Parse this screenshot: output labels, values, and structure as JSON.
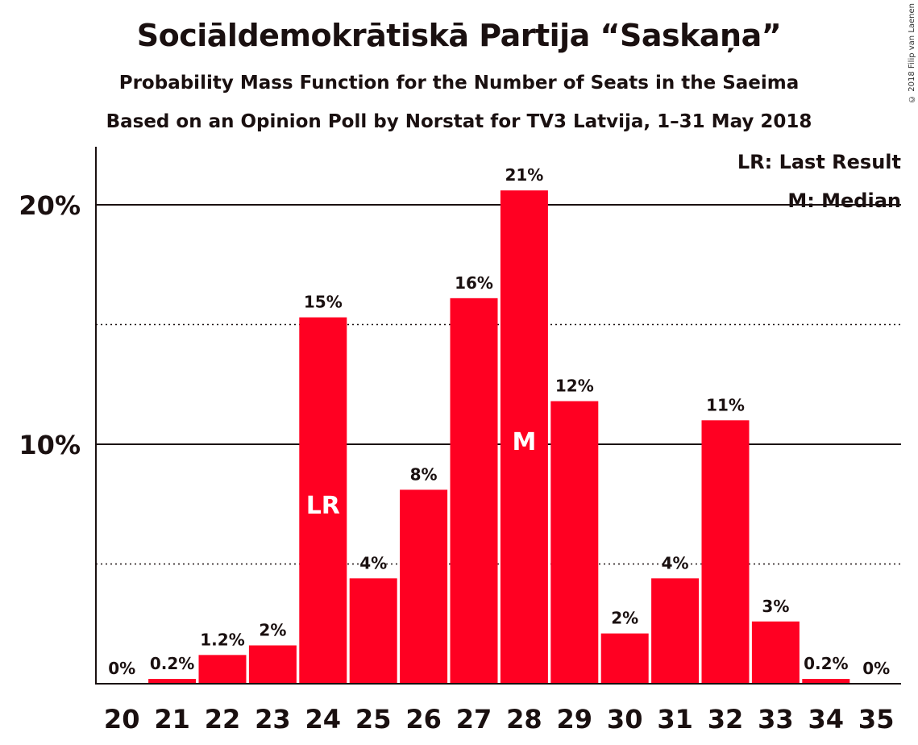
{
  "header": {
    "title": "Sociāldemokrātiskā Partija “Saskaņa”",
    "subtitle1": "Probability Mass Function for the Number of Seats in the Saeima",
    "subtitle2": "Based on an Opinion Poll by Norstat for TV3 Latvija, 1–31 May 2018",
    "copyright": "© 2018 Filip van Laenen"
  },
  "legend": {
    "last_result": "LR: Last Result",
    "median": "M: Median"
  },
  "colors": {
    "bar": "#ff0022",
    "axis": "#1a1010"
  },
  "chart_data": {
    "type": "bar",
    "title": "Sociāldemokrātiskā Partija “Saskaņa”",
    "xlabel": "",
    "ylabel": "",
    "categories": [
      "20",
      "21",
      "22",
      "23",
      "24",
      "25",
      "26",
      "27",
      "28",
      "29",
      "30",
      "31",
      "32",
      "33",
      "34",
      "35"
    ],
    "values": [
      0,
      0.2,
      1.2,
      1.6,
      15.3,
      4.4,
      8.1,
      16.1,
      20.6,
      11.8,
      2.1,
      4.4,
      11.0,
      2.6,
      0.2,
      0
    ],
    "labels": [
      "0%",
      "0.2%",
      "1.2%",
      "2%",
      "15%",
      "4%",
      "8%",
      "16%",
      "21%",
      "12%",
      "2%",
      "4%",
      "11%",
      "3%",
      "0.2%",
      "0%"
    ],
    "y_ticks": [
      {
        "value": 10,
        "label": "10%"
      },
      {
        "value": 20,
        "label": "20%"
      }
    ],
    "y_minor_ticks": [
      5,
      15
    ],
    "ylim": [
      0,
      22.5
    ],
    "last_result_category": "24",
    "last_result_label": "LR",
    "median_category": "28",
    "median_label": "M",
    "grid": true,
    "legend_position": "top-right"
  }
}
